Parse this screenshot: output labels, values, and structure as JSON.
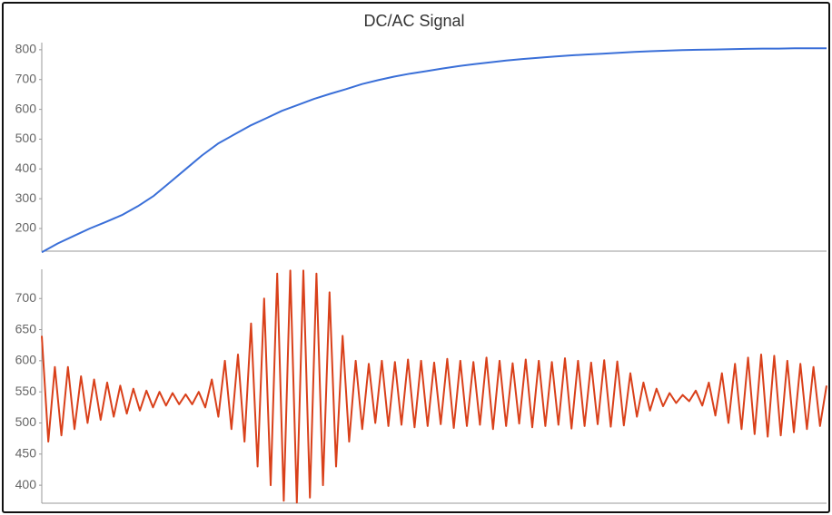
{
  "chart_data": [
    {
      "type": "line",
      "title": "DC/AC Signal",
      "color": "#3a6fd8",
      "ylim": [
        124,
        824
      ],
      "yticks": [
        200,
        300,
        400,
        500,
        600,
        700,
        800
      ],
      "values": [
        120,
        150,
        175,
        200,
        222,
        245,
        275,
        310,
        355,
        400,
        445,
        485,
        515,
        545,
        570,
        595,
        615,
        635,
        652,
        668,
        685,
        698,
        710,
        720,
        728,
        737,
        745,
        752,
        758,
        764,
        769,
        773,
        777,
        781,
        784,
        787,
        790,
        793,
        795,
        797,
        799,
        800,
        801,
        802,
        803,
        804,
        804,
        805,
        805,
        805
      ]
    },
    {
      "type": "line",
      "color": "#d9401a",
      "ylim": [
        371,
        747
      ],
      "yticks": [
        400,
        450,
        500,
        550,
        600,
        650,
        700
      ],
      "values": [
        640,
        470,
        590,
        480,
        590,
        490,
        575,
        500,
        570,
        505,
        565,
        510,
        560,
        515,
        555,
        520,
        552,
        525,
        550,
        528,
        548,
        530,
        546,
        530,
        550,
        525,
        570,
        510,
        600,
        490,
        610,
        470,
        660,
        430,
        700,
        400,
        740,
        375,
        745,
        372,
        745,
        380,
        740,
        400,
        710,
        430,
        640,
        470,
        600,
        490,
        595,
        500,
        600,
        495,
        598,
        497,
        602,
        493,
        600,
        495,
        597,
        498,
        603,
        492,
        600,
        495,
        598,
        497,
        605,
        490,
        600,
        495,
        596,
        499,
        602,
        493,
        600,
        495,
        598,
        497,
        604,
        491,
        600,
        495,
        597,
        498,
        601,
        494,
        599,
        496,
        580,
        510,
        565,
        520,
        555,
        527,
        548,
        532,
        545,
        535,
        552,
        528,
        565,
        512,
        580,
        500,
        595,
        490,
        605,
        482,
        610,
        478,
        608,
        480,
        600,
        485,
        595,
        490,
        590,
        495,
        560
      ]
    }
  ]
}
